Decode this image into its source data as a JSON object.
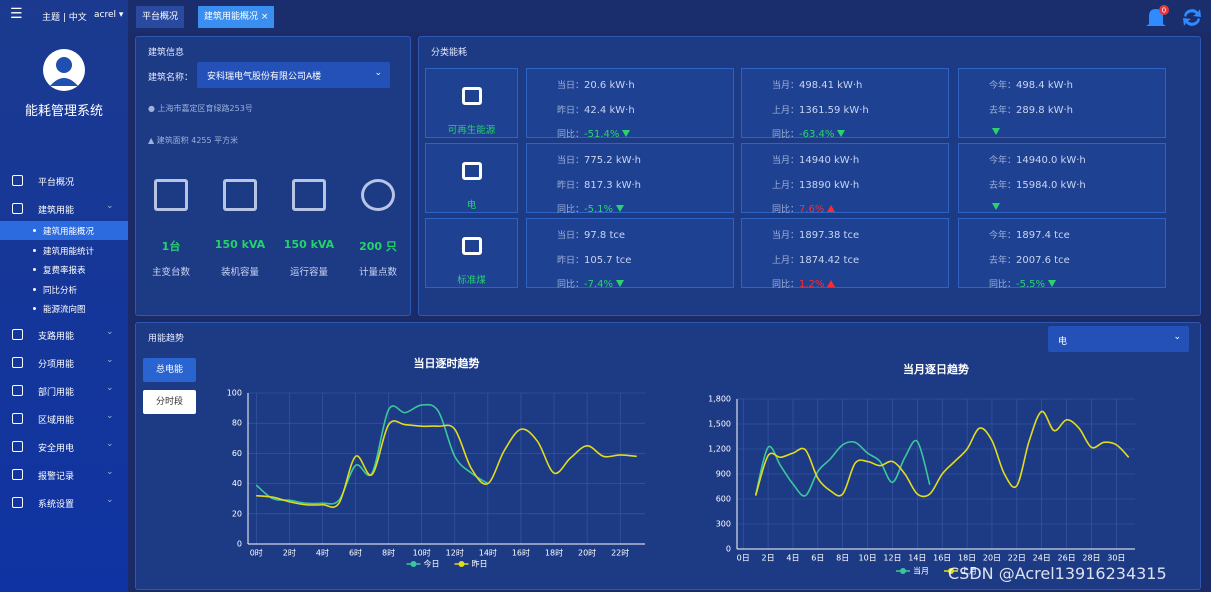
{
  "header": {
    "theme": "主题 | 中文",
    "user": "acrel",
    "system_title": "能耗管理系统",
    "notifications": "0"
  },
  "menu": [
    {
      "label": "平台概况"
    },
    {
      "label": "建筑用能",
      "children": [
        "建筑用能概况",
        "建筑用能统计",
        "复费率报表",
        "同比分析",
        "能源流向图"
      ]
    },
    {
      "label": "支路用能"
    },
    {
      "label": "分项用能"
    },
    {
      "label": "部门用能"
    },
    {
      "label": "区域用能"
    },
    {
      "label": "安全用电"
    },
    {
      "label": "报警记录"
    },
    {
      "label": "系统设置"
    }
  ],
  "tabs": [
    "平台概况",
    "建筑用能概况"
  ],
  "building": {
    "title": "建筑信息",
    "name_label": "建筑名称：",
    "name": "安科瑞电气股份有限公司A楼",
    "address": "上海市嘉定区育绿路253号",
    "area": "建筑面积 4255 平方米",
    "stats": [
      {
        "value": "1台",
        "label": "主变台数"
      },
      {
        "value": "150 kVA",
        "label": "装机容量"
      },
      {
        "value": "150 kVA",
        "label": "运行容量"
      },
      {
        "value": "200 只",
        "label": "计量点数"
      }
    ]
  },
  "energy": {
    "title": "分类能耗",
    "rows": [
      {
        "name": "可再生能源",
        "cells": [
          {
            "a_label": "当日：",
            "a": "20.6 kW·h",
            "b_label": "昨日：",
            "b": "42.4 kW·h",
            "c_label": "同比：",
            "c": "-51.4%",
            "trend": "down"
          },
          {
            "a_label": "当月：",
            "a": "498.41 kW·h",
            "b_label": "上月：",
            "b": "1361.59 kW·h",
            "c_label": "同比：",
            "c": "-63.4%",
            "trend": "down"
          },
          {
            "a_label": "今年：",
            "a": "498.4 kW·h",
            "b_label": "去年：",
            "b": "289.8 kW·h",
            "trend": "down"
          }
        ]
      },
      {
        "name": "电",
        "cells": [
          {
            "a_label": "当日：",
            "a": "775.2 kW·h",
            "b_label": "昨日：",
            "b": "817.3 kW·h",
            "c_label": "同比：",
            "c": "-5.1%",
            "trend": "down"
          },
          {
            "a_label": "当月：",
            "a": "14940 kW·h",
            "b_label": "上月：",
            "b": "13890 kW·h",
            "c_label": "同比：",
            "c": "7.6%",
            "trend": "up"
          },
          {
            "a_label": "今年：",
            "a": "14940.0 kW·h",
            "b_label": "去年：",
            "b": "15984.0 kW·h",
            "trend": "down"
          }
        ]
      },
      {
        "name": "标准煤",
        "cells": [
          {
            "a_label": "当日：",
            "a": "97.8 tce",
            "b_label": "昨日：",
            "b": "105.7 tce",
            "c_label": "同比：",
            "c": "-7.4%",
            "trend": "down"
          },
          {
            "a_label": "当月：",
            "a": "1897.38 tce",
            "b_label": "上月：",
            "b": "1874.42 tce",
            "c_label": "同比：",
            "c": "1.2%",
            "trend": "up"
          },
          {
            "a_label": "今年：",
            "a": "1897.4 tce",
            "b_label": "去年：",
            "b": "2007.6 tce",
            "c_label": "同比：",
            "c": "-5.5%",
            "trend": "down"
          }
        ]
      }
    ]
  },
  "trend": {
    "title": "用能趋势",
    "buttons": [
      "总电能",
      "分时段"
    ],
    "select": "电"
  },
  "watermark": "CSDN @Acrel13916234315",
  "chart_data": [
    {
      "type": "line",
      "title": "当日逐时趋势",
      "categories": [
        "0时",
        null,
        "2时",
        null,
        "4时",
        null,
        "6时",
        null,
        "8时",
        null,
        "10时",
        null,
        "12时",
        null,
        "14时",
        null,
        "16时",
        null,
        "18时",
        null,
        "20时",
        null,
        "22时",
        null
      ],
      "series": [
        {
          "name": "今日",
          "color": "#3cc79b",
          "values": [
            39,
            30,
            29,
            27,
            27,
            29,
            52,
            47,
            89,
            87,
            92,
            88,
            58,
            47,
            40,
            null,
            null,
            null,
            null,
            null,
            null,
            null,
            null,
            null
          ]
        },
        {
          "name": "昨日",
          "color": "#e2dc1c",
          "values": [
            32,
            31,
            28,
            26,
            26,
            27,
            58,
            46,
            79,
            79,
            78,
            78,
            76,
            50,
            40,
            62,
            76,
            68,
            47,
            57,
            65,
            58,
            59,
            58
          ]
        }
      ],
      "ylim": [
        0,
        100
      ],
      "yticks": [
        0,
        20,
        40,
        60,
        80,
        100
      ],
      "grid": true
    },
    {
      "type": "line",
      "title": "当月逐日趋势",
      "categories": [
        "0日",
        null,
        "2日",
        null,
        "4日",
        null,
        "6日",
        null,
        "8日",
        null,
        "10日",
        null,
        "12日",
        null,
        "14日",
        null,
        "16日",
        null,
        "18日",
        null,
        "20日",
        null,
        "22日",
        null,
        "24日",
        null,
        "26日",
        null,
        "28日",
        null,
        "30日",
        null
      ],
      "series": [
        {
          "name": "当月",
          "color": "#3cc79b",
          "values": [
            null,
            650,
            1220,
            1000,
            780,
            640,
            930,
            1080,
            1250,
            1280,
            1150,
            1050,
            800,
            1100,
            1290,
            770,
            null,
            null,
            null,
            null,
            null,
            null,
            null,
            null,
            null,
            null,
            null,
            null,
            null,
            null,
            null,
            null
          ]
        },
        {
          "name": "上月",
          "color": "#e2dc1c",
          "values": [
            null,
            640,
            1120,
            1100,
            1150,
            1190,
            850,
            700,
            660,
            1030,
            1050,
            1000,
            1050,
            900,
            660,
            660,
            900,
            1050,
            1200,
            1450,
            1300,
            900,
            760,
            1300,
            1650,
            1420,
            1550,
            1450,
            1220,
            1280,
            1250,
            1100
          ]
        }
      ],
      "ylim": [
        0,
        1800
      ],
      "yticks": [
        0,
        300,
        600,
        900,
        {
          "value": 1200,
          "label": "1,200"
        },
        {
          "value": 1500,
          "label": "1,500"
        },
        {
          "value": 1800,
          "label": "1,800"
        }
      ],
      "grid": true
    }
  ]
}
